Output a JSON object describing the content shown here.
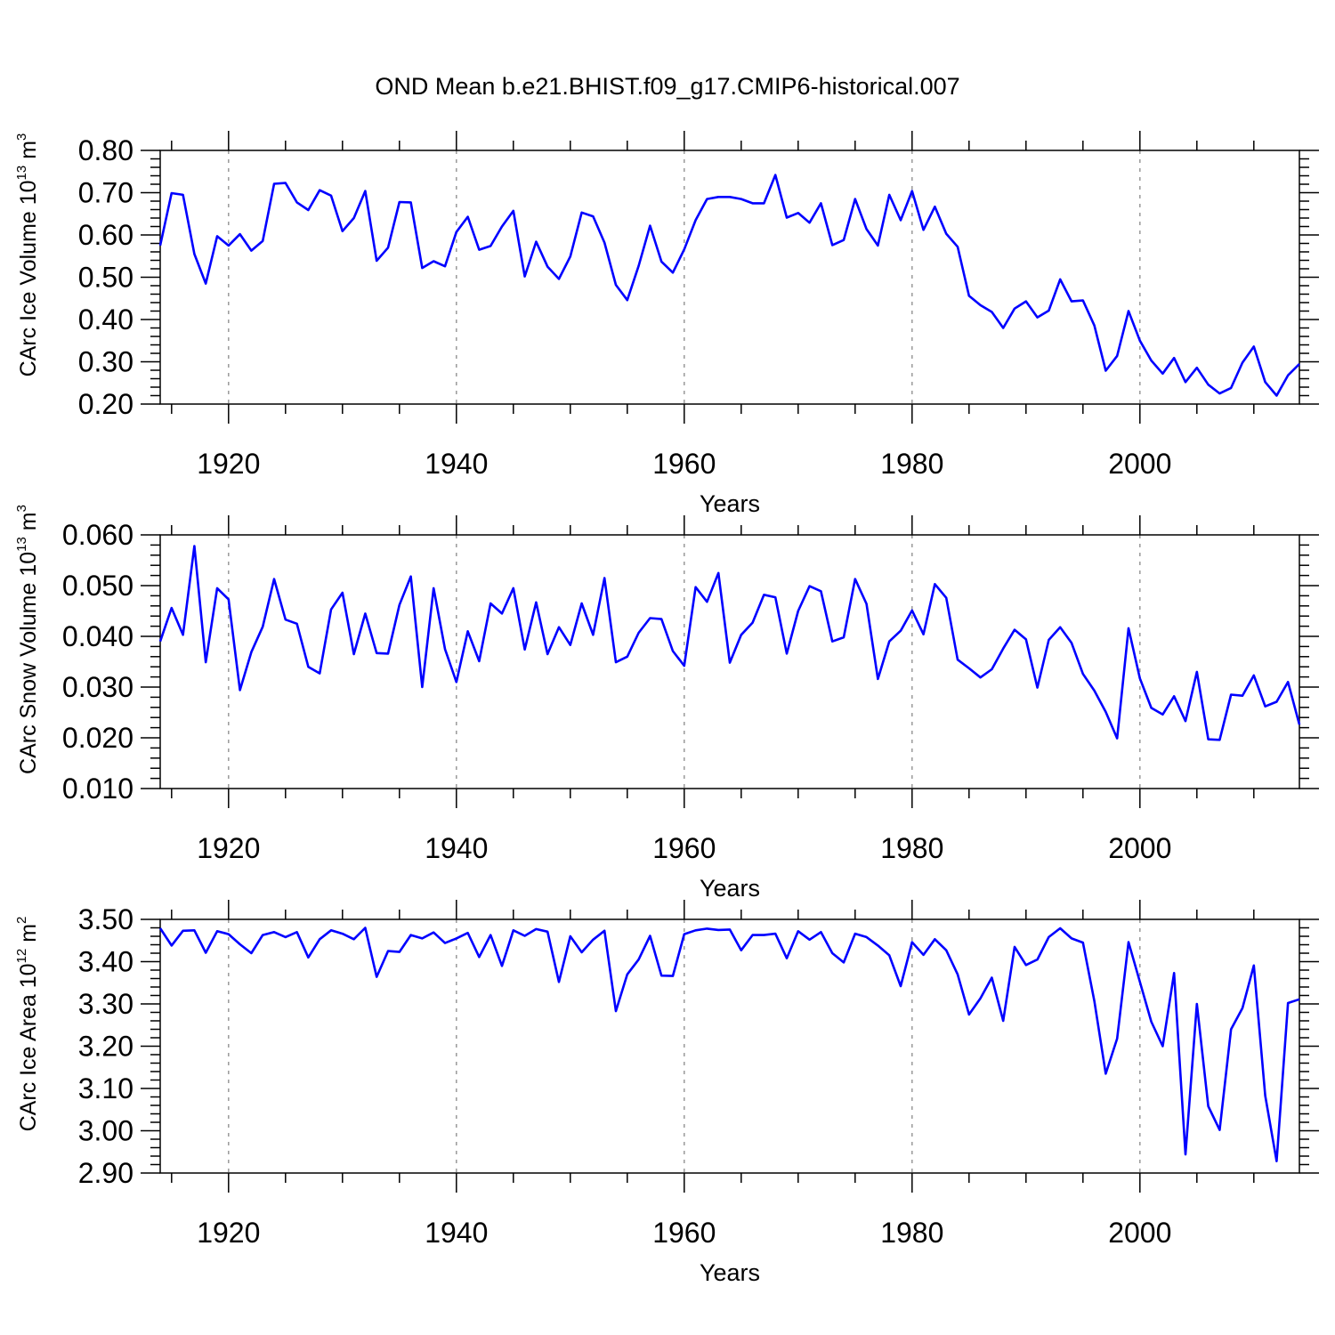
{
  "title": "OND Mean b.e21.BHIST.f09_g17.CMIP6-historical.007",
  "colors": {
    "line": "#0000ff",
    "axis": "#000000",
    "grid": "#999999"
  },
  "chart_data": [
    {
      "type": "line",
      "ylabel": {
        "text": "CArc Ice Volume 10",
        "exp": "13",
        "unit": " m",
        "unit_exp": "3"
      },
      "xlabel": "Years",
      "xlim": [
        1914,
        2014
      ],
      "ylim": [
        0.2,
        0.8
      ],
      "xticks": [
        1920,
        1940,
        1960,
        1980,
        2000
      ],
      "xtick_labels": [
        "1920",
        "1940",
        "1960",
        "1980",
        "2000"
      ],
      "yticks": [
        0.2,
        0.3,
        0.4,
        0.5,
        0.6,
        0.7,
        0.8
      ],
      "ytick_labels": [
        "0.20",
        "0.30",
        "0.40",
        "0.50",
        "0.60",
        "0.70",
        "0.80"
      ],
      "grid": "vertical dashed at major x ticks",
      "series": [
        {
          "name": "ice_volume",
          "x_start": 1914,
          "values": [
            0.575,
            0.699,
            0.695,
            0.555,
            0.485,
            0.597,
            0.575,
            0.602,
            0.563,
            0.586,
            0.721,
            0.723,
            0.677,
            0.659,
            0.706,
            0.693,
            0.609,
            0.64,
            0.704,
            0.539,
            0.57,
            0.678,
            0.677,
            0.522,
            0.538,
            0.526,
            0.607,
            0.643,
            0.565,
            0.574,
            0.62,
            0.657,
            0.502,
            0.584,
            0.525,
            0.496,
            0.549,
            0.653,
            0.644,
            0.582,
            0.482,
            0.446,
            0.527,
            0.622,
            0.537,
            0.511,
            0.566,
            0.635,
            0.685,
            0.69,
            0.69,
            0.685,
            0.675,
            0.675,
            0.742,
            0.641,
            0.652,
            0.629,
            0.675,
            0.576,
            0.588,
            0.685,
            0.614,
            0.575,
            0.695,
            0.635,
            0.704,
            0.612,
            0.667,
            0.603,
            0.572,
            0.456,
            0.434,
            0.418,
            0.38,
            0.426,
            0.443,
            0.405,
            0.421,
            0.495,
            0.443,
            0.445,
            0.386,
            0.279,
            0.314,
            0.42,
            0.35,
            0.303,
            0.272,
            0.309,
            0.252,
            0.286,
            0.246,
            0.225,
            0.238,
            0.298,
            0.336,
            0.252,
            0.22,
            0.268,
            0.295
          ]
        }
      ]
    },
    {
      "type": "line",
      "ylabel": {
        "text": "CArc Snow Volume 10",
        "exp": "13",
        "unit": " m",
        "unit_exp": "3"
      },
      "xlabel": "Years",
      "xlim": [
        1914,
        2014
      ],
      "ylim": [
        0.01,
        0.06
      ],
      "xticks": [
        1920,
        1940,
        1960,
        1980,
        2000
      ],
      "xtick_labels": [
        "1920",
        "1940",
        "1960",
        "1980",
        "2000"
      ],
      "yticks": [
        0.01,
        0.02,
        0.03,
        0.04,
        0.05,
        0.06
      ],
      "ytick_labels": [
        "0.010",
        "0.020",
        "0.030",
        "0.040",
        "0.050",
        "0.060"
      ],
      "grid": "vertical dashed at major x ticks",
      "series": [
        {
          "name": "snow_volume",
          "x_start": 1914,
          "values": [
            0.039,
            0.0456,
            0.0403,
            0.0578,
            0.0349,
            0.0495,
            0.0473,
            0.0294,
            0.0369,
            0.0419,
            0.0513,
            0.0433,
            0.0425,
            0.034,
            0.0327,
            0.0453,
            0.0486,
            0.0365,
            0.0445,
            0.0367,
            0.0366,
            0.0462,
            0.0518,
            0.03,
            0.0495,
            0.0375,
            0.031,
            0.041,
            0.0351,
            0.0465,
            0.0445,
            0.0495,
            0.0374,
            0.0467,
            0.0365,
            0.0418,
            0.0383,
            0.0465,
            0.0403,
            0.0515,
            0.0349,
            0.036,
            0.0407,
            0.0436,
            0.0434,
            0.0371,
            0.0342,
            0.0497,
            0.0468,
            0.0525,
            0.0348,
            0.0403,
            0.0427,
            0.0482,
            0.0477,
            0.0366,
            0.045,
            0.0499,
            0.0489,
            0.039,
            0.0398,
            0.0513,
            0.0464,
            0.0316,
            0.039,
            0.0411,
            0.0451,
            0.0404,
            0.0503,
            0.0476,
            0.0354,
            0.0337,
            0.0319,
            0.0335,
            0.0376,
            0.0413,
            0.0394,
            0.0299,
            0.0393,
            0.0418,
            0.0387,
            0.0326,
            0.0293,
            0.0251,
            0.0199,
            0.0416,
            0.0317,
            0.0259,
            0.0246,
            0.0282,
            0.0233,
            0.033,
            0.0197,
            0.0196,
            0.0285,
            0.0283,
            0.0323,
            0.0262,
            0.0271,
            0.031,
            0.0226
          ]
        }
      ]
    },
    {
      "type": "line",
      "ylabel": {
        "text": "CArc Ice Area 10",
        "exp": "12",
        "unit": " m",
        "unit_exp": "2"
      },
      "xlabel": "Years",
      "xlim": [
        1914,
        2014
      ],
      "ylim": [
        2.9,
        3.5
      ],
      "xticks": [
        1920,
        1940,
        1960,
        1980,
        2000
      ],
      "xtick_labels": [
        "1920",
        "1940",
        "1960",
        "1980",
        "2000"
      ],
      "yticks": [
        2.9,
        3.0,
        3.1,
        3.2,
        3.3,
        3.4,
        3.5
      ],
      "ytick_labels": [
        "2.90",
        "3.00",
        "3.10",
        "3.20",
        "3.30",
        "3.40",
        "3.50"
      ],
      "grid": "vertical dashed at major x ticks",
      "series": [
        {
          "name": "ice_area",
          "x_start": 1914,
          "values": [
            3.479,
            3.438,
            3.473,
            3.474,
            3.421,
            3.472,
            3.465,
            3.441,
            3.42,
            3.463,
            3.47,
            3.458,
            3.47,
            3.41,
            3.453,
            3.474,
            3.466,
            3.453,
            3.48,
            3.364,
            3.425,
            3.423,
            3.463,
            3.455,
            3.469,
            3.444,
            3.455,
            3.468,
            3.411,
            3.463,
            3.39,
            3.474,
            3.461,
            3.477,
            3.471,
            3.352,
            3.46,
            3.422,
            3.452,
            3.473,
            3.283,
            3.37,
            3.405,
            3.461,
            3.367,
            3.366,
            3.465,
            3.474,
            3.478,
            3.475,
            3.476,
            3.427,
            3.463,
            3.463,
            3.466,
            3.408,
            3.472,
            3.452,
            3.47,
            3.42,
            3.398,
            3.466,
            3.458,
            3.438,
            3.415,
            3.342,
            3.446,
            3.416,
            3.453,
            3.427,
            3.37,
            3.275,
            3.313,
            3.362,
            3.26,
            3.435,
            3.392,
            3.405,
            3.458,
            3.479,
            3.455,
            3.445,
            3.307,
            3.135,
            3.218,
            3.446,
            3.352,
            3.258,
            3.2,
            3.373,
            2.944,
            3.3,
            3.058,
            3.002,
            3.24,
            3.29,
            3.391,
            3.083,
            2.928,
            3.302,
            3.311
          ]
        }
      ]
    }
  ]
}
